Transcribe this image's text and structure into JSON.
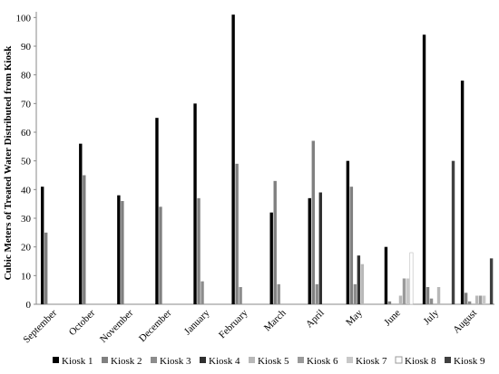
{
  "chart_data": {
    "type": "bar",
    "y_label": "Cubic Meters of Treated Water Distributed from Kiosk",
    "categories": [
      "September",
      "October",
      "November",
      "December",
      "January",
      "February",
      "March",
      "April",
      "May",
      "June",
      "July",
      "August"
    ],
    "series": [
      {
        "name": "Kiosk 1",
        "color": "#000000",
        "values": [
          41,
          56,
          38,
          65,
          70,
          101,
          32,
          37,
          50,
          20,
          94,
          78
        ]
      },
      {
        "name": "Kiosk 2",
        "color": "#808080",
        "values": [
          25,
          45,
          36,
          34,
          37,
          49,
          43,
          57,
          41,
          1,
          6,
          4
        ]
      },
      {
        "name": "Kiosk 3",
        "color": "#8c8c8c",
        "values": [
          0,
          0,
          0,
          0,
          8,
          6,
          7,
          7,
          7,
          0,
          2,
          1
        ]
      },
      {
        "name": "Kiosk 4",
        "color": "#303030",
        "values": [
          0,
          0,
          0,
          0,
          0,
          0,
          0,
          39,
          17,
          0,
          0,
          0
        ]
      },
      {
        "name": "Kiosk 5",
        "color": "#b8b8b8",
        "values": [
          0,
          0,
          0,
          0,
          0,
          0,
          0,
          0,
          14,
          3,
          6,
          3
        ]
      },
      {
        "name": "Kiosk 6",
        "color": "#9a9a9a",
        "values": [
          0,
          0,
          0,
          0,
          0,
          0,
          0,
          0,
          0,
          9,
          0,
          3
        ]
      },
      {
        "name": "Kiosk 7",
        "color": "#c8c8c8",
        "values": [
          0,
          0,
          0,
          0,
          0,
          0,
          0,
          0,
          0,
          9,
          0,
          3
        ]
      },
      {
        "name": "Kiosk 8",
        "color": "#ffffff",
        "values": [
          0,
          0,
          0,
          0,
          0,
          0,
          0,
          0,
          0,
          18,
          0,
          0
        ]
      },
      {
        "name": "Kiosk 9",
        "color": "#404040",
        "values": [
          0,
          0,
          0,
          0,
          0,
          0,
          0,
          0,
          0,
          0,
          50,
          16
        ]
      }
    ],
    "ylim": [
      0,
      102
    ],
    "yticks": [
      0,
      10,
      20,
      30,
      40,
      50,
      60,
      70,
      80,
      90,
      100
    ],
    "grid": false,
    "legend": "bottom"
  }
}
